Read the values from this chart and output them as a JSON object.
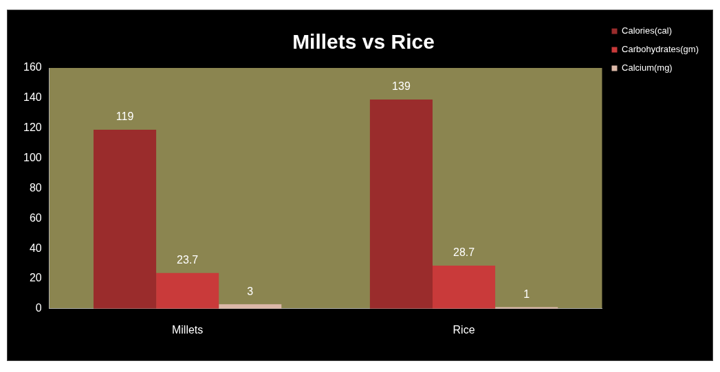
{
  "chart_data": {
    "type": "bar",
    "title": "Millets vs Rice",
    "categories": [
      "Millets",
      "Rice"
    ],
    "series": [
      {
        "name": "Calories(cal)",
        "color": "#9a2c2c",
        "values": [
          119,
          139
        ]
      },
      {
        "name": "Carbohydrates(gm)",
        "color": "#c93a3a",
        "values": [
          23.7,
          28.7
        ]
      },
      {
        "name": "Calcium(mg)",
        "color": "#dcb8a8",
        "values": [
          3,
          1
        ]
      }
    ],
    "ylim": [
      0,
      160
    ],
    "yticks": [
      0,
      20,
      40,
      60,
      80,
      100,
      120,
      140,
      160
    ],
    "grid": false,
    "legend": "top right",
    "data_labels": true
  }
}
